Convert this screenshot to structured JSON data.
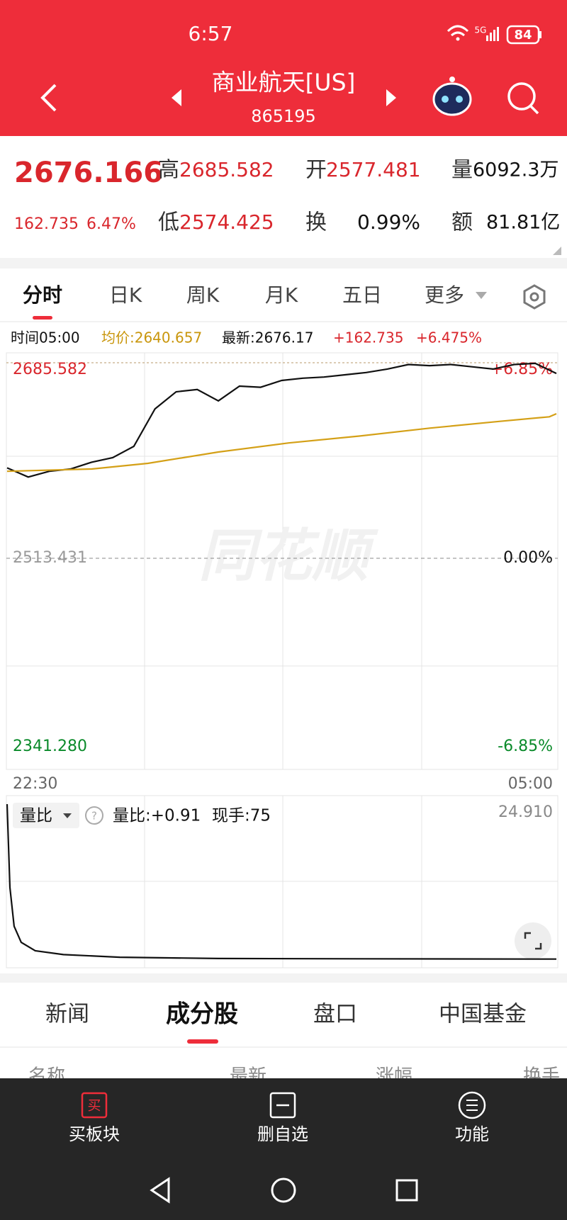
{
  "status_bar": {
    "time": "6:57",
    "network": "5G",
    "battery": "84"
  },
  "header": {
    "title": "商业航天[US]",
    "code": "865195"
  },
  "quote": {
    "price": "2676.166",
    "change": "162.735",
    "change_pct": "6.47%",
    "fields": [
      {
        "label": "高",
        "value": "2685.582"
      },
      {
        "label": "开",
        "value": "2577.481"
      },
      {
        "label": "量",
        "value": "6092.3万"
      },
      {
        "label": "低",
        "value": "2574.425"
      },
      {
        "label": "换",
        "value": "0.99%"
      },
      {
        "label": "额",
        "value": "81.81亿"
      }
    ]
  },
  "tabs": [
    "分时",
    "日K",
    "周K",
    "月K",
    "五日",
    "更多"
  ],
  "info_line": [
    "时间05:00",
    "均价:2640.657",
    "最新:2676.17",
    "+162.735",
    "+6.475%"
  ],
  "chart_data": [
    {
      "type": "line",
      "watermark": "同花顺",
      "xlim": [
        0,
        390
      ],
      "xticks": [
        {
          "value": 0,
          "label": "22:30"
        },
        {
          "value": 390,
          "label": "05:00"
        }
      ],
      "ylim": [
        2341.28,
        2685.582
      ],
      "yticks": [
        2685.582,
        2513.431,
        {
          "value": 2341.28,
          "label": "2341.280"
        }
      ],
      "y2lim": [
        -6.85,
        6.85
      ],
      "y2ticks": [
        {
          "value": 6.85,
          "label": "+6.85%"
        },
        {
          "value": 0,
          "label": "0.00%"
        },
        {
          "value": -6.85,
          "label": "-6.85%"
        }
      ],
      "series": [
        {
          "color": "#111111",
          "x": [
            0,
            15,
            30,
            45,
            60,
            75,
            90,
            105,
            120,
            135,
            150,
            165,
            180,
            195,
            210,
            225,
            240,
            255,
            270,
            285,
            300,
            315,
            330,
            345,
            360,
            375,
            390
          ],
          "values": [
            2593,
            2585,
            2590,
            2592,
            2598,
            2602,
            2612,
            2645,
            2660,
            2662,
            2652,
            2665,
            2664,
            2670,
            2672,
            2673,
            2675,
            2677,
            2680,
            2684,
            2683,
            2684,
            2682,
            2680,
            2684,
            2685,
            2676.17
          ]
        },
        {
          "color": "#d4a017",
          "x": [
            0,
            60,
            100,
            150,
            200,
            250,
            300,
            350,
            385,
            390
          ],
          "values": [
            2590,
            2592,
            2597,
            2607,
            2615,
            2621,
            2628,
            2634,
            2638,
            2640.657
          ]
        }
      ]
    },
    {
      "type": "line",
      "selector": "量比",
      "readout": [
        "量比:+0.91",
        "现手:75"
      ],
      "xlim": [
        0,
        390
      ],
      "ylim": [
        0,
        24.91
      ],
      "yticks": [
        {
          "value": 24.91,
          "label": "24.910"
        }
      ],
      "series": [
        {
          "color": "#111111",
          "x": [
            0,
            2,
            5,
            10,
            20,
            40,
            80,
            150,
            250,
            390
          ],
          "values": [
            24.91,
            12,
            6,
            3.5,
            2.2,
            1.6,
            1.2,
            1.0,
            0.95,
            0.91
          ]
        }
      ]
    }
  ],
  "bottom_tabs": [
    "新闻",
    "成分股",
    "盘口",
    "中国基金"
  ],
  "table_header": [
    "名称",
    "最新",
    "涨幅",
    "换手"
  ],
  "bottom_bar": [
    {
      "icon": "买",
      "label": "买板块"
    },
    {
      "label": "删自选"
    },
    {
      "label": "功能"
    }
  ]
}
